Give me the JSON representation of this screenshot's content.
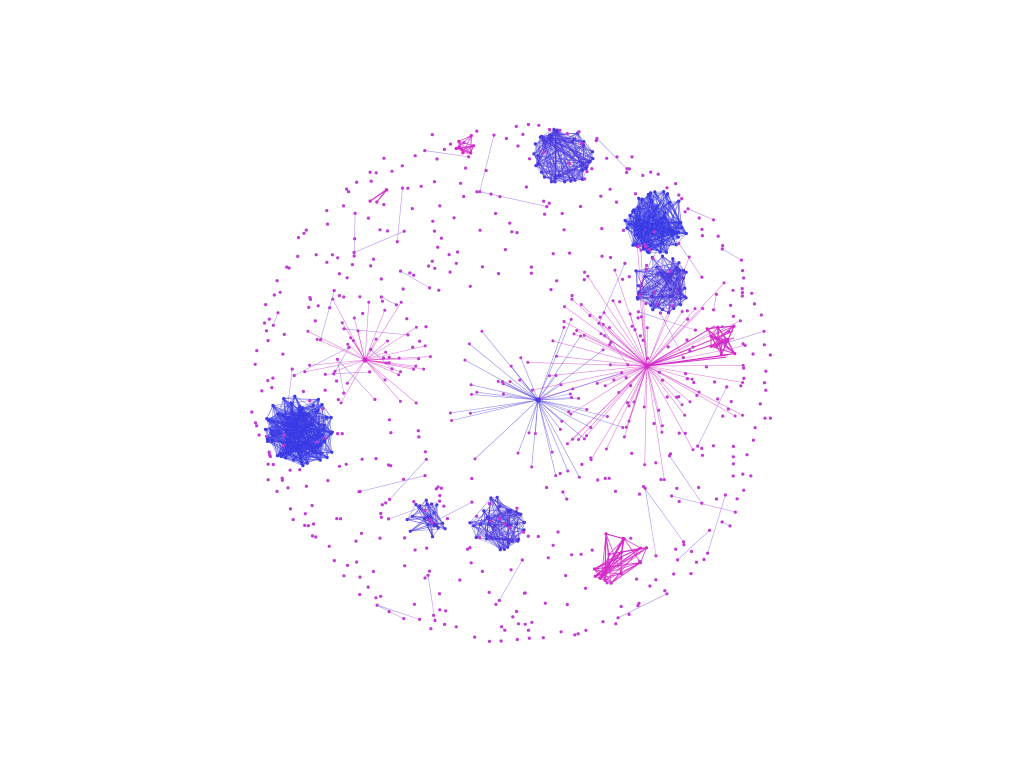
{
  "graph": {
    "style": {
      "background": "#ffffff",
      "node_color": "#c13ad6",
      "edge_gradient": [
        "#3a3ae6",
        "#c23ad6"
      ],
      "dense_cluster_color": "#4a3ae0",
      "highlight_color": "#d42ac8"
    },
    "clusters": [
      {
        "name": "cluster-top-circle",
        "shape": "dense-ring",
        "tone": "purple"
      },
      {
        "name": "cluster-top-right",
        "shape": "dense-blob",
        "tone": "blue"
      },
      {
        "name": "cluster-right-lower",
        "shape": "dense-blob",
        "tone": "purple"
      },
      {
        "name": "cluster-left",
        "shape": "dense-blob",
        "tone": "blue"
      },
      {
        "name": "cluster-bottom-mid",
        "shape": "dense-blob",
        "tone": "purple"
      },
      {
        "name": "cluster-bottom-left",
        "shape": "dense-blob",
        "tone": "purple"
      },
      {
        "name": "cluster-magenta-bottom",
        "shape": "mesh",
        "tone": "magenta"
      },
      {
        "name": "cluster-magenta-wedge",
        "shape": "wedge",
        "tone": "magenta"
      },
      {
        "name": "cluster-top-small",
        "shape": "mesh",
        "tone": "magenta"
      },
      {
        "name": "cluster-top-left-triangle",
        "shape": "triangle",
        "tone": "magenta"
      }
    ],
    "hubs": [
      {
        "name": "hub-right",
        "tone": "magenta"
      },
      {
        "name": "hub-center",
        "tone": "purple"
      },
      {
        "name": "hub-left",
        "tone": "magenta"
      }
    ]
  }
}
